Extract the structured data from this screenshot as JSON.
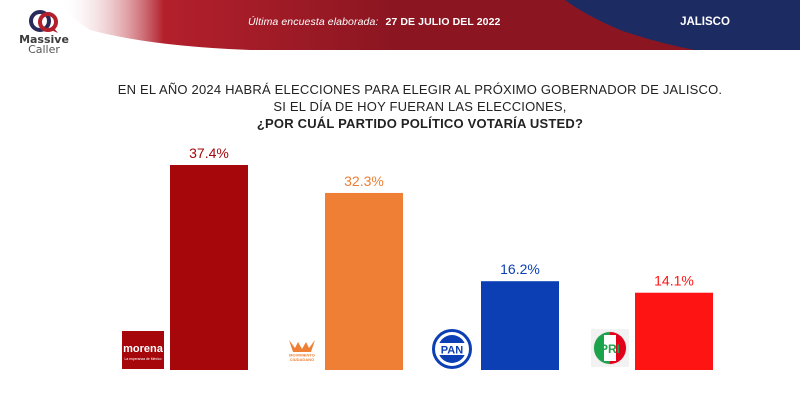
{
  "header": {
    "brand_line1": "Massive",
    "brand_line2": "Caller",
    "survey_label": "Última encuesta elaborada:",
    "survey_date": "27 DE JULIO DEL 2022",
    "region": "JALISCO"
  },
  "colors": {
    "header_red": "#8b1621",
    "header_navy": "#1d2b63",
    "morena": "#a5070b",
    "mc": "#ee7f34",
    "pan": "#0b3fb3",
    "pri": "#ff1414"
  },
  "question": {
    "line1": "EN EL AÑO 2024 HABRÁ ELECCIONES PARA ELEGIR AL PRÓXIMO GOBERNADOR DE JALISCO.",
    "line2": "SI EL DÍA DE HOY FUERAN LAS ELECCIONES,",
    "line3": "¿POR CUÁL PARTIDO POLÍTICO VOTARÍA USTED?"
  },
  "logos": {
    "morena": {
      "icon": "morena-logo",
      "text": "morena",
      "subtext": "La esperanza de México"
    },
    "mc": {
      "icon": "movimiento-ciudadano-logo",
      "text1": "MOVIMIENTO",
      "text2": "CIUDADANO"
    },
    "pan": {
      "icon": "pan-logo",
      "text": "PAN"
    },
    "pri": {
      "icon": "pri-logo",
      "text": "PRI"
    }
  },
  "chart_data": {
    "type": "bar",
    "categories": [
      "MORENA",
      "MC",
      "PAN",
      "PRI"
    ],
    "values": [
      37.4,
      32.3,
      16.2,
      14.1
    ],
    "labels": [
      "37.4%",
      "32.3%",
      "16.2%",
      "14.1%"
    ],
    "colors": [
      "#a5070b",
      "#ee7f34",
      "#0b3fb3",
      "#ff1414"
    ],
    "ylim": [
      0,
      37.4
    ],
    "title": "",
    "xlabel": "",
    "ylabel": "",
    "grid": false,
    "legend": "none"
  }
}
